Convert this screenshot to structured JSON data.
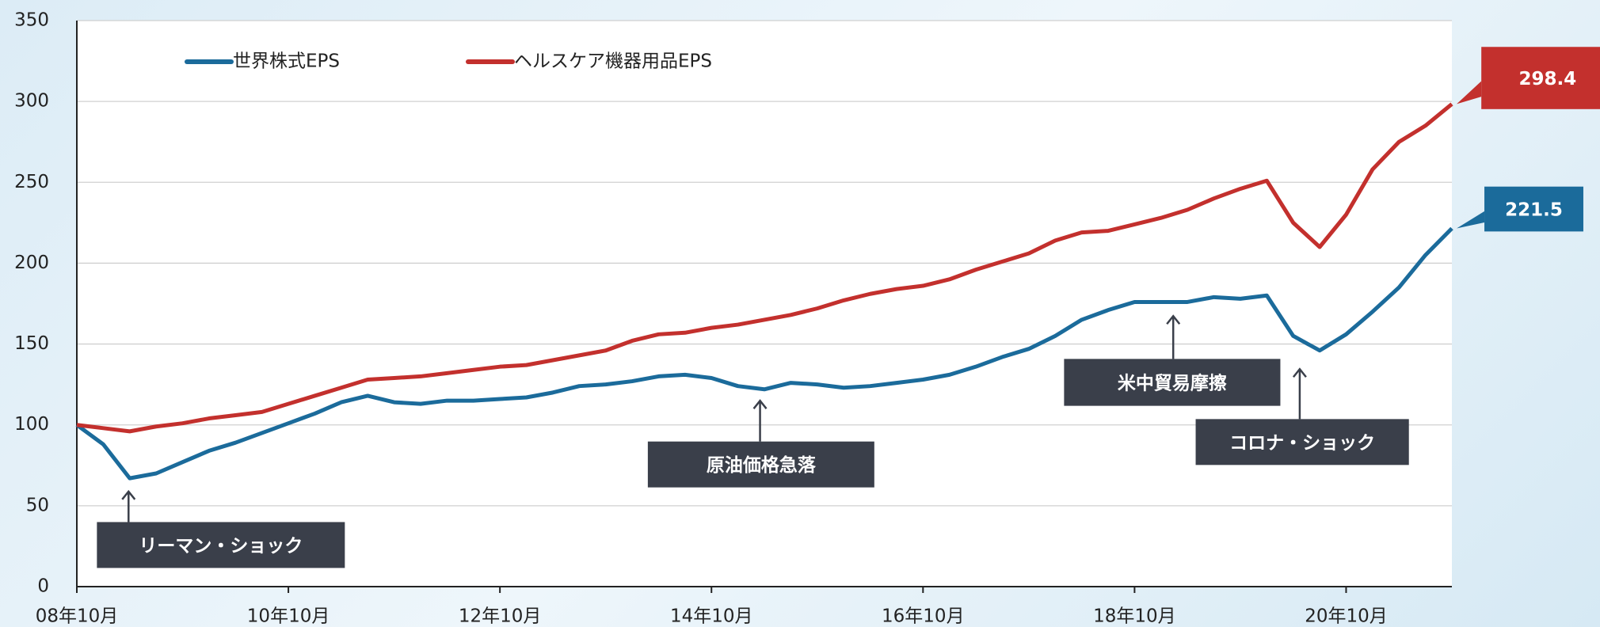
{
  "chart_data": {
    "type": "line",
    "categories": [
      "08年10月",
      null,
      null,
      null,
      null,
      null,
      null,
      null,
      "10年10月",
      null,
      null,
      null,
      null,
      null,
      null,
      null,
      "12年10月",
      null,
      null,
      null,
      null,
      null,
      null,
      null,
      "14年10月",
      null,
      null,
      null,
      null,
      null,
      null,
      null,
      "16年10月",
      null,
      null,
      null,
      null,
      null,
      null,
      null,
      "18年10月",
      null,
      null,
      null,
      null,
      null,
      null,
      null,
      "20年10月",
      null,
      null,
      null,
      null
    ],
    "series": [
      {
        "name": "世界株式EPS",
        "color": "#1b6b9b",
        "values": [
          100,
          88,
          67,
          70,
          77,
          84,
          89,
          95,
          101,
          107,
          114,
          118,
          114,
          113,
          115,
          115,
          116,
          117,
          120,
          124,
          125,
          127,
          130,
          131,
          129,
          124,
          122,
          126,
          125,
          123,
          124,
          126,
          128,
          131,
          136,
          142,
          147,
          155,
          165,
          171,
          176,
          176,
          176,
          179,
          178,
          180,
          155,
          146,
          156,
          170,
          185,
          205,
          221.5
        ]
      },
      {
        "name": "ヘルスケア機器用品EPS",
        "color": "#c3302d",
        "values": [
          100,
          98,
          96,
          99,
          101,
          104,
          106,
          108,
          113,
          118,
          123,
          128,
          129,
          130,
          132,
          134,
          136,
          137,
          140,
          143,
          146,
          152,
          156,
          157,
          160,
          162,
          165,
          168,
          172,
          177,
          181,
          184,
          186,
          190,
          196,
          201,
          206,
          214,
          219,
          220,
          224,
          228,
          233,
          240,
          246,
          251,
          225,
          210,
          230,
          258,
          275,
          285,
          298.4
        ]
      }
    ],
    "annotations": [
      "リーマン・ショック",
      "原油価格急落",
      "米中貿易摩擦",
      "コロナ・ショック"
    ],
    "ylim": [
      0,
      350
    ],
    "yticks": [
      0,
      50,
      100,
      150,
      200,
      250,
      300,
      350
    ],
    "grid": true,
    "legend": "top-left"
  }
}
